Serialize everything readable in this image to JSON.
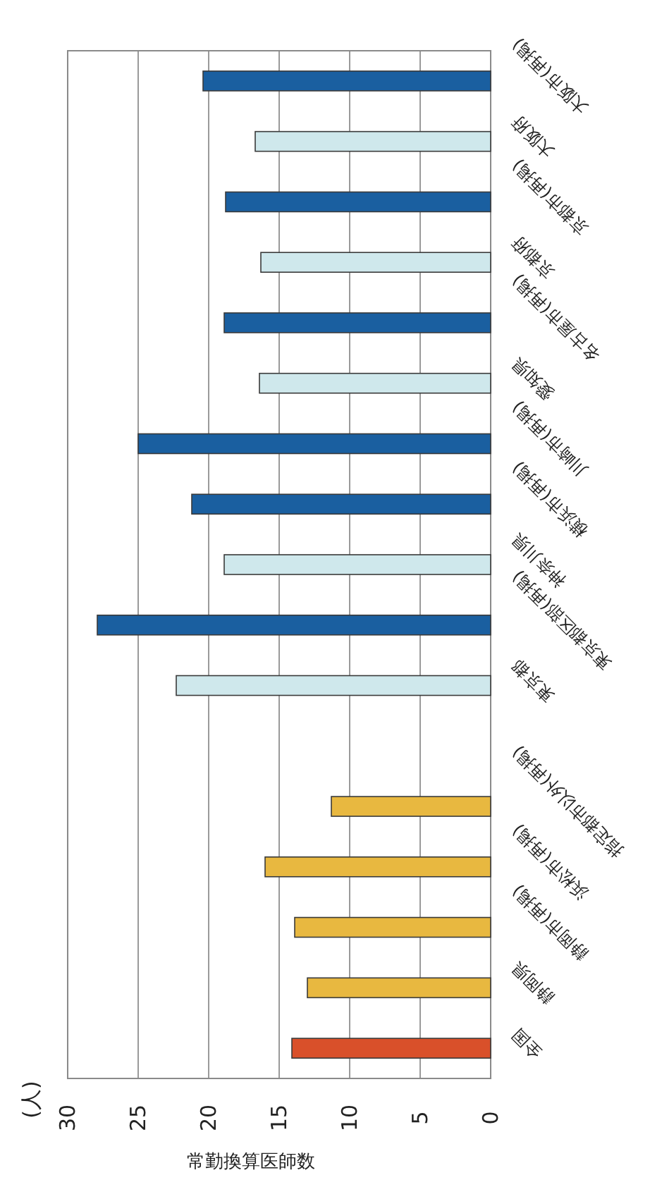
{
  "chart_data": {
    "type": "bar",
    "orientation": "horizontal",
    "xlabel": "常勤換算医師数",
    "annotations": [
      "(人)"
    ],
    "categories": [
      "大阪市(再掲)",
      "大阪府",
      "京都市(再掲)",
      "京都府",
      "名古屋市(再掲)",
      "愛知県",
      "川崎市(再掲)",
      "横浜市(再掲)",
      "神奈川県",
      "東京都区部(再掲)",
      "東京都",
      null,
      "指定都市以外(再掲)",
      "浜松市(再掲)",
      "静岡市(再掲)",
      "静岡県",
      "全国"
    ],
    "values": [
      20.4,
      16.7,
      18.8,
      16.3,
      18.9,
      16.4,
      25.0,
      21.2,
      18.9,
      27.9,
      22.3,
      null,
      11.3,
      16.0,
      13.9,
      13.0,
      14.1
    ],
    "colors": [
      "#1a5fa0",
      "#cfe8ec",
      "#1a5fa0",
      "#cfe8ec",
      "#1a5fa0",
      "#cfe8ec",
      "#1a5fa0",
      "#1a5fa0",
      "#cfe8ec",
      "#1a5fa0",
      "#cfe8ec",
      null,
      "#e8b840",
      "#e8b840",
      "#e8b840",
      "#e8b840",
      "#d9502a"
    ],
    "xlim": [
      30,
      0
    ],
    "xticks": [
      30,
      25,
      20,
      15,
      10,
      5,
      0
    ],
    "grid": "x"
  }
}
